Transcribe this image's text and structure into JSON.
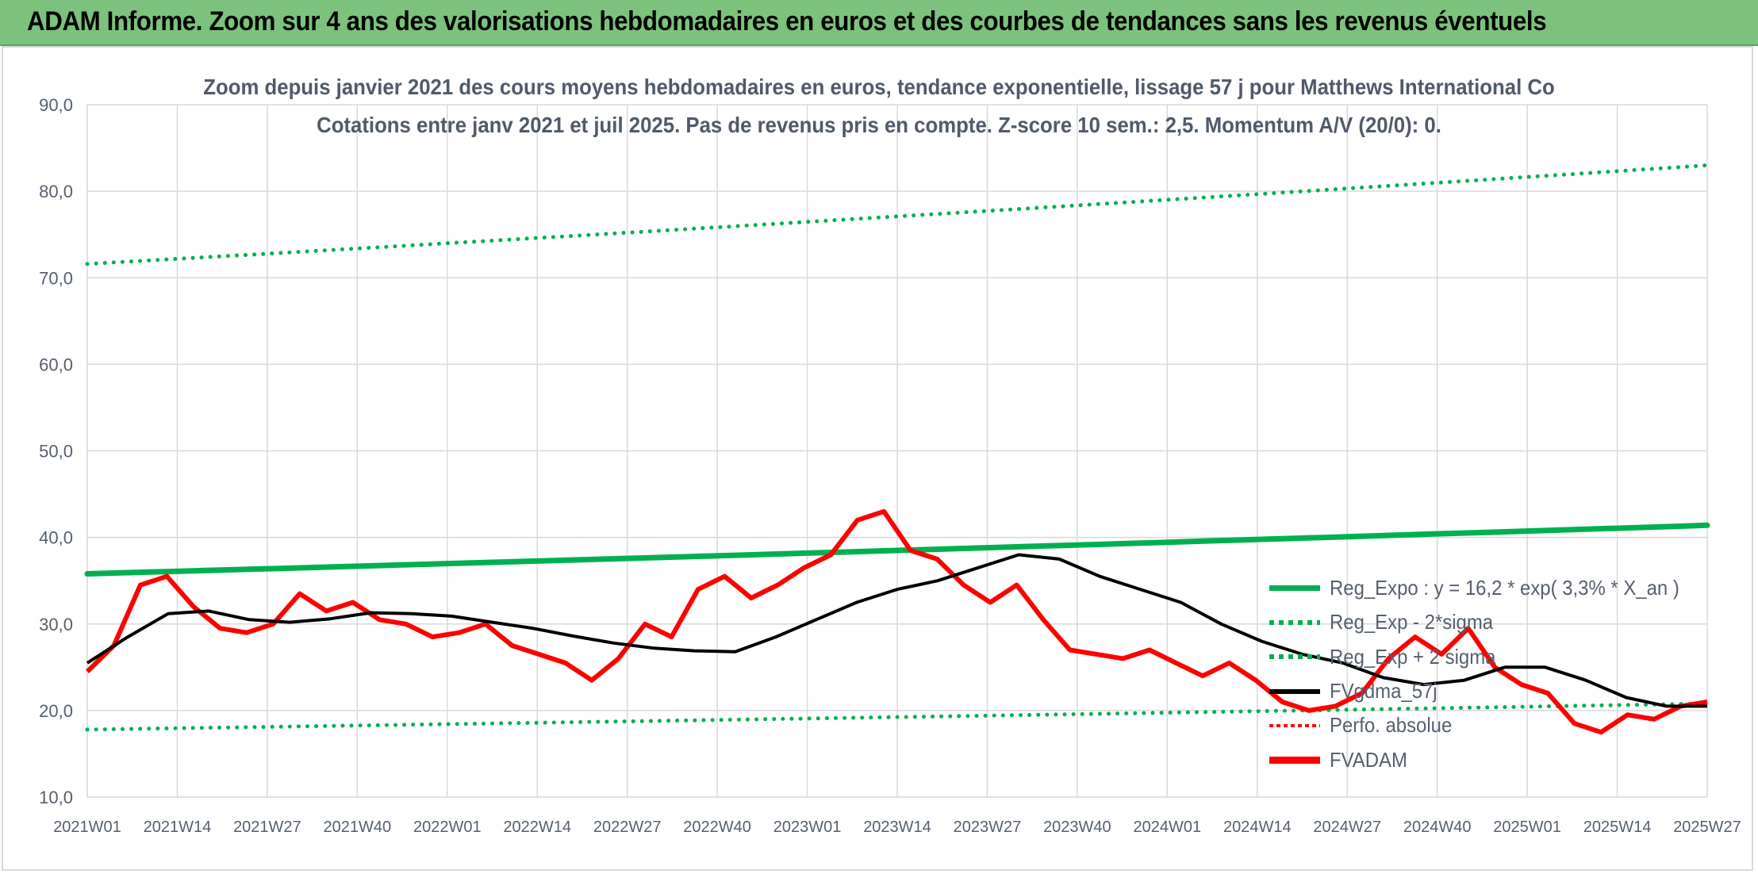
{
  "header": {
    "title": "ADAM Informe. Zoom sur 4 ans des valorisations hebdomadaires en euros et des courbes de tendances sans les revenus éventuels"
  },
  "chart_data": {
    "type": "line",
    "title_line1": "Zoom depuis janvier 2021 des cours moyens hebdomadaires en euros, tendance exponentielle, lissage 57 j pour Matthews International Co",
    "title_line2": "Cotations entre janv 2021 et juil 2025. Pas de revenus pris en compte. Z-score 10 sem.: 2,5. Momentum A/V (20/0): 0.",
    "ylim": [
      10,
      90
    ],
    "y_ticks": [
      "10,0",
      "20,0",
      "30,0",
      "40,0",
      "50,0",
      "60,0",
      "70,0",
      "80,0",
      "90,0"
    ],
    "x_ticks": [
      "2021W01",
      "2021W14",
      "2021W27",
      "2021W40",
      "2022W01",
      "2022W14",
      "2022W27",
      "2022W40",
      "2023W01",
      "2023W14",
      "2023W27",
      "2023W40",
      "2024W01",
      "2024W14",
      "2024W27",
      "2024W40",
      "2025W01",
      "2025W14",
      "2025W27"
    ],
    "grid": true,
    "legend_position": "bottom-right",
    "series": [
      {
        "name": "Reg_Expo : y = 16,2 * exp( 3,3% *  X_an )",
        "color": "#00b050",
        "style": "solid",
        "values": [
          35.8,
          41.4
        ]
      },
      {
        "name": "Reg_Exp - 2*sigma",
        "color": "#00b050",
        "style": "dotted",
        "values": [
          17.8,
          20.8
        ]
      },
      {
        "name": "Reg_Exp + 2 sigma",
        "color": "#00b050",
        "style": "dotted",
        "values": [
          71.6,
          83.0
        ]
      },
      {
        "name": "FVgdma_57j",
        "color": "#000000",
        "style": "solid",
        "values": [
          25.5,
          28.5,
          31.2,
          31.5,
          30.5,
          30.2,
          30.6,
          31.3,
          31.2,
          30.9,
          30.2,
          29.5,
          28.6,
          27.8,
          27.2,
          26.9,
          26.8,
          28.5,
          30.5,
          32.5,
          34.0,
          35.0,
          36.5,
          38.0,
          37.5,
          35.5,
          34.0,
          32.5,
          30.0,
          28.0,
          26.5,
          25.5,
          23.8,
          23.0,
          23.5,
          25.0,
          25.0,
          23.5,
          21.5,
          20.5,
          20.5
        ]
      },
      {
        "name": "Perfo. absolue",
        "color": "#ff0000",
        "style": "dotted",
        "values": []
      },
      {
        "name": "FVADAM",
        "color": "#ff0000",
        "style": "solid",
        "values": [
          24.5,
          27.5,
          34.5,
          35.5,
          32.0,
          29.5,
          29.0,
          30.0,
          33.5,
          31.5,
          32.5,
          30.5,
          30.0,
          28.5,
          29.0,
          30.0,
          27.5,
          26.5,
          25.5,
          23.5,
          26.0,
          30.0,
          28.5,
          34.0,
          35.5,
          33.0,
          34.5,
          36.5,
          38.0,
          42.0,
          43.0,
          38.5,
          37.5,
          34.5,
          32.5,
          34.5,
          30.5,
          27.0,
          26.5,
          26.0,
          27.0,
          25.5,
          24.0,
          25.5,
          23.5,
          21.0,
          20.0,
          20.5,
          22.0,
          26.0,
          28.5,
          26.5,
          29.5,
          25.0,
          23.0,
          22.0,
          18.5,
          17.5,
          19.5,
          19.0,
          20.5,
          21.0
        ]
      }
    ]
  }
}
